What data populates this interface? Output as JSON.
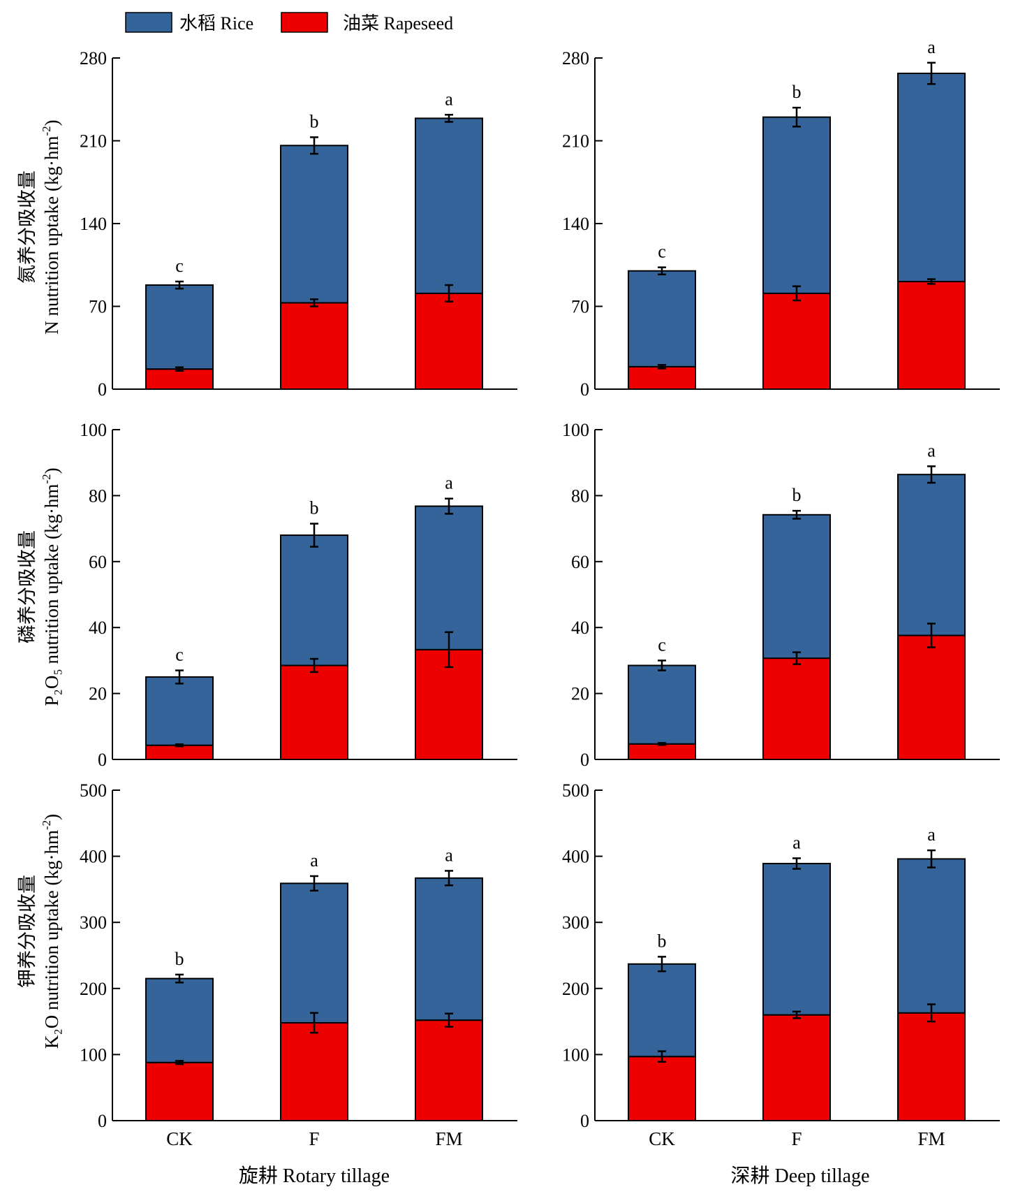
{
  "legend": {
    "placement": "top",
    "items": [
      {
        "label": "水稻 Rice",
        "color": "#34649A"
      },
      {
        "label": "油菜 Rapeseed",
        "color": "#EE0000"
      }
    ]
  },
  "x_titles": [
    "旋耕 Rotary tillage",
    "深耕 Deep tillage"
  ],
  "y_titles": [
    {
      "zh": "氮养分吸收量",
      "en": "N nutrition uptake (kg·hm",
      "sup": "-2",
      "close": ")"
    },
    {
      "zh": "磷养分吸收量",
      "en": "P₂O₅ nutrition uptake (kg·hm",
      "sup": "-2",
      "close": ")"
    },
    {
      "zh": "钾养分吸收量",
      "en": "K₂O nutrition uptake (kg·hm",
      "sup": "-2",
      "close": ")"
    }
  ],
  "chart_data": [
    {
      "type": "bar",
      "stacked": true,
      "panel": "N - Rotary tillage",
      "categories": [
        "CK",
        "F",
        "FM"
      ],
      "ylim": [
        0,
        280
      ],
      "yticks": [
        0,
        70,
        140,
        210,
        280
      ],
      "series": [
        {
          "name": "油菜 Rapeseed",
          "values": [
            17,
            73,
            81
          ],
          "errors": [
            1.5,
            3,
            7
          ]
        },
        {
          "name": "水稻 Rice",
          "values": [
            71,
            133,
            148
          ]
        }
      ],
      "totals": [
        88,
        206,
        229
      ],
      "total_errors": [
        3,
        7,
        3
      ],
      "letters": [
        "c",
        "b",
        "a"
      ]
    },
    {
      "type": "bar",
      "stacked": true,
      "panel": "N - Deep tillage",
      "categories": [
        "CK",
        "F",
        "FM"
      ],
      "ylim": [
        0,
        280
      ],
      "yticks": [
        0,
        70,
        140,
        210,
        280
      ],
      "series": [
        {
          "name": "油菜 Rapeseed",
          "values": [
            19,
            81,
            91
          ],
          "errors": [
            1.5,
            6,
            2
          ]
        },
        {
          "name": "水稻 Rice",
          "values": [
            81,
            149,
            176
          ]
        }
      ],
      "totals": [
        100,
        230,
        267
      ],
      "total_errors": [
        3,
        8,
        9
      ],
      "letters": [
        "c",
        "b",
        "a"
      ]
    },
    {
      "type": "bar",
      "stacked": true,
      "panel": "P2O5 - Rotary tillage",
      "categories": [
        "CK",
        "F",
        "FM"
      ],
      "ylim": [
        0,
        100
      ],
      "yticks": [
        0,
        20,
        40,
        60,
        80,
        100
      ],
      "series": [
        {
          "name": "油菜 Rapeseed",
          "values": [
            4.3,
            28.5,
            33.3
          ],
          "errors": [
            0.3,
            2,
            5.3
          ]
        },
        {
          "name": "水稻 Rice",
          "values": [
            20.7,
            39.5,
            43.5
          ]
        }
      ],
      "totals": [
        25,
        68,
        76.8
      ],
      "total_errors": [
        2,
        3.5,
        2.3
      ],
      "letters": [
        "c",
        "b",
        "a"
      ]
    },
    {
      "type": "bar",
      "stacked": true,
      "panel": "P2O5 - Deep tillage",
      "categories": [
        "CK",
        "F",
        "FM"
      ],
      "ylim": [
        0,
        100
      ],
      "yticks": [
        0,
        20,
        40,
        60,
        80,
        100
      ],
      "series": [
        {
          "name": "油菜 Rapeseed",
          "values": [
            4.7,
            30.7,
            37.6
          ],
          "errors": [
            0.3,
            1.8,
            3.6
          ]
        },
        {
          "name": "水稻 Rice",
          "values": [
            23.8,
            43.5,
            48.8
          ]
        }
      ],
      "totals": [
        28.5,
        74.2,
        86.4
      ],
      "total_errors": [
        1.5,
        1.2,
        2.5
      ],
      "letters": [
        "c",
        "b",
        "a"
      ]
    },
    {
      "type": "bar",
      "stacked": true,
      "panel": "K2O - Rotary tillage",
      "categories": [
        "CK",
        "F",
        "FM"
      ],
      "ylim": [
        0,
        500
      ],
      "yticks": [
        0,
        100,
        200,
        300,
        400,
        500
      ],
      "series": [
        {
          "name": "油菜 Rapeseed",
          "values": [
            88,
            148,
            152
          ],
          "errors": [
            2.5,
            15,
            10
          ]
        },
        {
          "name": "水稻 Rice",
          "values": [
            127,
            211,
            215
          ]
        }
      ],
      "totals": [
        215,
        359,
        367
      ],
      "total_errors": [
        6,
        11,
        11
      ],
      "letters": [
        "b",
        "a",
        "a"
      ]
    },
    {
      "type": "bar",
      "stacked": true,
      "panel": "K2O - Deep tillage",
      "categories": [
        "CK",
        "F",
        "FM"
      ],
      "ylim": [
        0,
        500
      ],
      "yticks": [
        0,
        100,
        200,
        300,
        400,
        500
      ],
      "series": [
        {
          "name": "油菜 Rapeseed",
          "values": [
            97,
            160,
            163
          ],
          "errors": [
            8,
            5,
            13
          ]
        },
        {
          "name": "水稻 Rice",
          "values": [
            140,
            229,
            233
          ]
        }
      ],
      "totals": [
        237,
        389,
        396
      ],
      "total_errors": [
        11,
        8,
        13
      ],
      "letters": [
        "b",
        "a",
        "a"
      ]
    }
  ]
}
